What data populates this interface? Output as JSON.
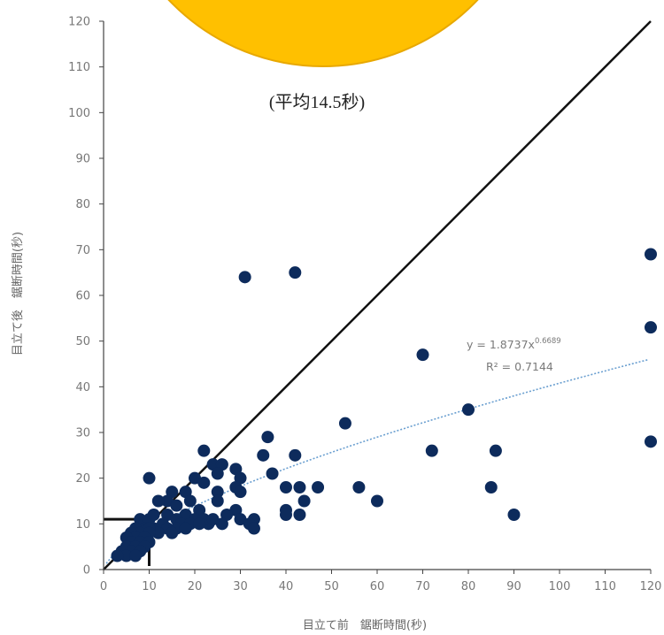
{
  "caption": "(平均14.5秒)",
  "colors": {
    "badge": "#FFC000",
    "badge_edge": "#E8A800",
    "points": "#0D2B5C",
    "trendline": "#6A9FD0",
    "diagonal": "#111111",
    "axis": "#444444",
    "text": "#777777"
  },
  "chart_data": {
    "type": "scatter",
    "xlabel": "目立て前　鋸断時間(秒)",
    "ylabel": "目立て後　鋸断時間(秒)",
    "xlim": [
      0,
      120
    ],
    "ylim": [
      0,
      120
    ],
    "xticks": [
      "0",
      "10",
      "20",
      "30",
      "40",
      "50",
      "60",
      "70",
      "80",
      "90",
      "100",
      "110",
      "120"
    ],
    "yticks": [
      "0",
      "10",
      "20",
      "30",
      "40",
      "50",
      "60",
      "70",
      "80",
      "90",
      "100",
      "110",
      "120"
    ],
    "grid": false,
    "reference_line": {
      "from": [
        0,
        0
      ],
      "to": [
        120,
        120
      ]
    },
    "mean_box": {
      "x": 10,
      "y": 11
    },
    "trendline": {
      "type": "power",
      "equation_base": "y = 1.8737x",
      "equation_exp": "0.6689",
      "r2": "R² = 0.7144",
      "a": 1.8737,
      "b": 0.6689
    },
    "points": [
      [
        120,
        69
      ],
      [
        120,
        53
      ],
      [
        120,
        28
      ],
      [
        31,
        64
      ],
      [
        42,
        65
      ],
      [
        70,
        47
      ],
      [
        80,
        35
      ],
      [
        53,
        32
      ],
      [
        72,
        26
      ],
      [
        86,
        26
      ],
      [
        85,
        18
      ],
      [
        90,
        12
      ],
      [
        56,
        18
      ],
      [
        60,
        15
      ],
      [
        35,
        25
      ],
      [
        36,
        29
      ],
      [
        37,
        21
      ],
      [
        42,
        25
      ],
      [
        40,
        18
      ],
      [
        43,
        18
      ],
      [
        47,
        18
      ],
      [
        44,
        15
      ],
      [
        40,
        13
      ],
      [
        40,
        12
      ],
      [
        43,
        12
      ],
      [
        22,
        26
      ],
      [
        24,
        23
      ],
      [
        26,
        23
      ],
      [
        25,
        21
      ],
      [
        29,
        22
      ],
      [
        30,
        20
      ],
      [
        29,
        18
      ],
      [
        25,
        17
      ],
      [
        30,
        17
      ],
      [
        25,
        15
      ],
      [
        29,
        13
      ],
      [
        27,
        12
      ],
      [
        30,
        11
      ],
      [
        33,
        11
      ],
      [
        32,
        10
      ],
      [
        33,
        9
      ],
      [
        26,
        10
      ],
      [
        23,
        10
      ],
      [
        10,
        20
      ],
      [
        20,
        20
      ],
      [
        22,
        19
      ],
      [
        18,
        17
      ],
      [
        15,
        17
      ],
      [
        14,
        15
      ],
      [
        12,
        15
      ],
      [
        16,
        14
      ],
      [
        19,
        15
      ],
      [
        21,
        13
      ],
      [
        18,
        12
      ],
      [
        14,
        12
      ],
      [
        16,
        11
      ],
      [
        20,
        11
      ],
      [
        22,
        11
      ],
      [
        24,
        11
      ],
      [
        13,
        10
      ],
      [
        17,
        10
      ],
      [
        19,
        10
      ],
      [
        21,
        10
      ],
      [
        11,
        9
      ],
      [
        14,
        9
      ],
      [
        16,
        9
      ],
      [
        18,
        9
      ],
      [
        12,
        8
      ],
      [
        15,
        8
      ],
      [
        8,
        11
      ],
      [
        9,
        10
      ],
      [
        10,
        11
      ],
      [
        9,
        9
      ],
      [
        10,
        9
      ],
      [
        11,
        12
      ],
      [
        7,
        9
      ],
      [
        8,
        8
      ],
      [
        10,
        8
      ],
      [
        6,
        8
      ],
      [
        7,
        7
      ],
      [
        9,
        7
      ],
      [
        5,
        7
      ],
      [
        6,
        6
      ],
      [
        8,
        6
      ],
      [
        10,
        6
      ],
      [
        5,
        5
      ],
      [
        7,
        5
      ],
      [
        9,
        5
      ],
      [
        4,
        4
      ],
      [
        6,
        4
      ],
      [
        8,
        4
      ],
      [
        5,
        3
      ],
      [
        7,
        3
      ],
      [
        3,
        3
      ]
    ]
  }
}
